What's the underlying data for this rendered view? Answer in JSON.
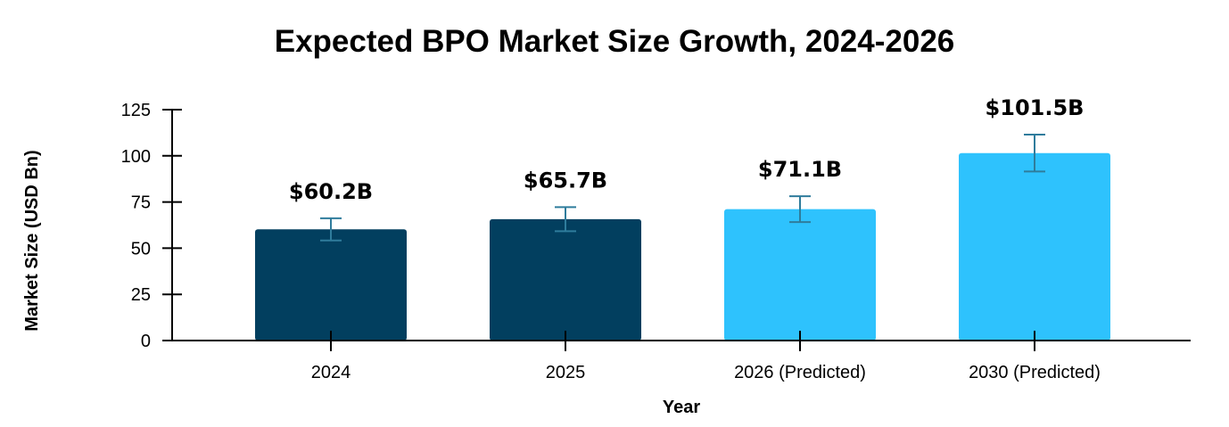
{
  "chart_data": {
    "type": "bar",
    "title": "Expected BPO Market Size Growth, 2024-2026",
    "xlabel": "Year",
    "ylabel": "Market Size (USD Bn)",
    "ylim": [
      0,
      125
    ],
    "yticks": [
      0,
      25,
      50,
      75,
      100,
      125
    ],
    "grid": false,
    "categories": [
      "2024",
      "2025",
      "2026 (Predicted)",
      "2030 (Predicted)"
    ],
    "values": [
      60.2,
      65.7,
      71.1,
      101.5
    ],
    "errors": [
      6,
      6.5,
      7,
      10
    ],
    "data_labels": [
      "$60.2B",
      "$65.7B",
      "$71.1B",
      "$101.5B"
    ],
    "colors": [
      "#023f5f",
      "#023f5f",
      "#2ec2fd",
      "#2ec2fd"
    ],
    "error_color": "#2f7c9c"
  }
}
